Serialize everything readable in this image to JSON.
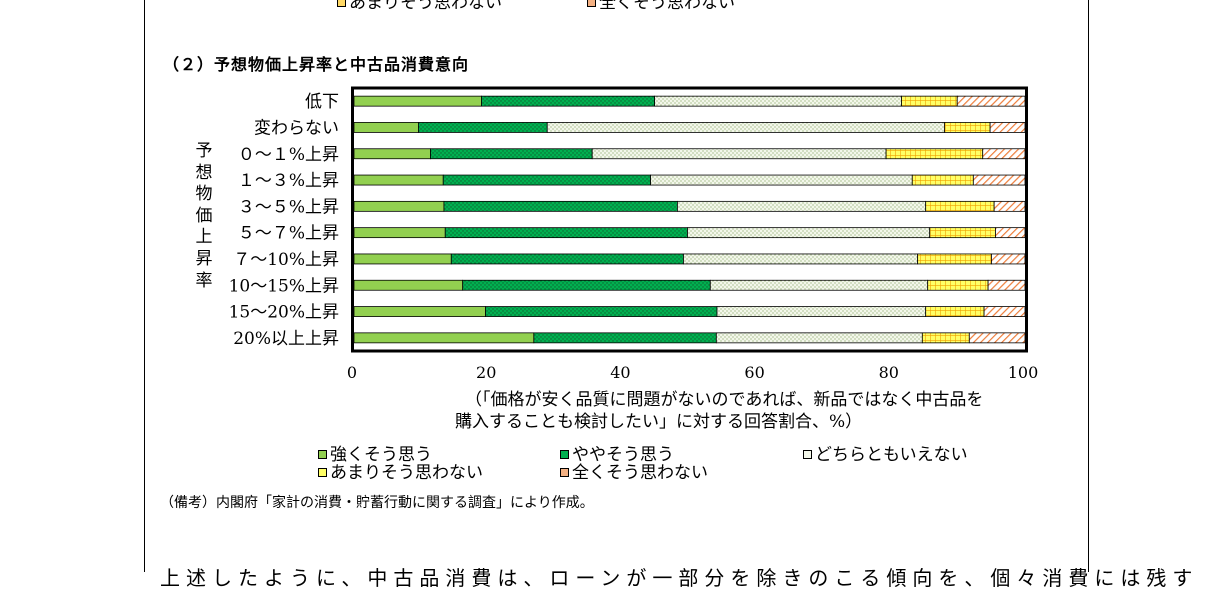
{
  "top_legend": {
    "items": [
      {
        "label": "あまりそう思わない",
        "key": "somewhat_disagree"
      },
      {
        "label": "全くそう思わない",
        "key": "strongly_disagree"
      }
    ]
  },
  "section_title": "（２）予想物価上昇率と中古品消費意向",
  "y_axis_title_chars": [
    "予",
    "想",
    "物",
    "価",
    "上",
    "昇",
    "率"
  ],
  "note_lines": [
    "（「価格が安く品質に問題がないのであれば、新品ではなく中古品を",
    "購入することも検討したい」に対する回答割合、%）"
  ],
  "source": "（備考）内閣府「家計の消費・貯蓄行動に関する調査」により作成。",
  "bottom_text": "上述したように、中古品消費は、ローンが一部分を除きのこる傾向を、個々消費には残す",
  "chart_data": {
    "type": "bar",
    "orientation": "horizontal",
    "stacked": true,
    "title": "（２）予想物価上昇率と中古品消費意向",
    "ylabel": "予想物価上昇率",
    "xlabel": "（「価格が安く品質に問題がないのであれば、新品ではなく中古品を購入することも検討したい」に対する回答割合、%）",
    "xlim": [
      0,
      100
    ],
    "xticks": [
      0,
      20,
      40,
      60,
      80,
      100
    ],
    "grid": false,
    "legend_position": "bottom",
    "categories": [
      "低下",
      "変わらない",
      "０～１%上昇",
      "１～３%上昇",
      "３～５%上昇",
      "５～７%上昇",
      "７～10%上昇",
      "10～15%上昇",
      "15～20%上昇",
      "20%以上上昇"
    ],
    "series": [
      {
        "name": "強くそう思う",
        "color": "#92d050",
        "values": [
          19.0,
          9.6,
          11.4,
          13.3,
          13.4,
          13.6,
          14.5,
          16.2,
          19.6,
          26.8
        ]
      },
      {
        "name": "ややそう思う",
        "color": "#00b050",
        "values": [
          25.8,
          19.2,
          24.1,
          30.9,
          34.8,
          36.1,
          34.6,
          36.9,
          34.5,
          27.2
        ]
      },
      {
        "name": "どちらともいえない",
        "color": "#ebf1de",
        "values": [
          36.8,
          59.2,
          43.8,
          39.0,
          37.0,
          36.1,
          34.9,
          32.4,
          31.1,
          30.7
        ]
      },
      {
        "name": "あまりそう思わない",
        "color": "#ffd966",
        "values": [
          8.3,
          6.8,
          14.4,
          9.1,
          10.2,
          9.8,
          11.0,
          9.0,
          8.7,
          7.0
        ]
      },
      {
        "name": "全くそう思わない",
        "color": "#f4b183",
        "values": [
          10.1,
          5.2,
          6.3,
          7.7,
          4.6,
          4.4,
          5.0,
          5.5,
          6.1,
          8.3
        ]
      }
    ]
  }
}
